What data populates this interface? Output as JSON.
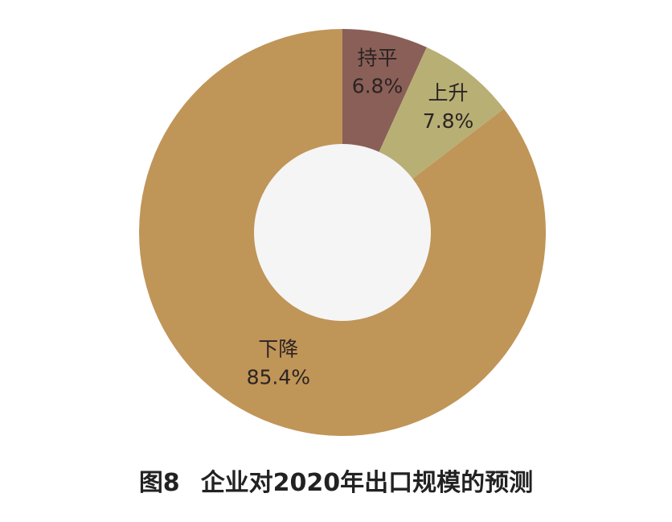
{
  "chart_data": {
    "type": "pie",
    "donut": true,
    "categories": [
      "持平",
      "上升",
      "下降"
    ],
    "values": [
      6.8,
      7.8,
      85.4
    ],
    "value_labels": [
      "6.8%",
      "7.8%",
      "85.4%"
    ],
    "unit": "%",
    "start_angle_deg": 0,
    "direction": "clockwise",
    "legend": "none"
  },
  "colors": {
    "持平": "#8a5f58",
    "上升": "#b8af75",
    "下降": "#c09558",
    "hole": "#f5f5f5"
  },
  "caption": {
    "figure_number": "图8",
    "title": "企业对2020年出口规模的预测"
  }
}
